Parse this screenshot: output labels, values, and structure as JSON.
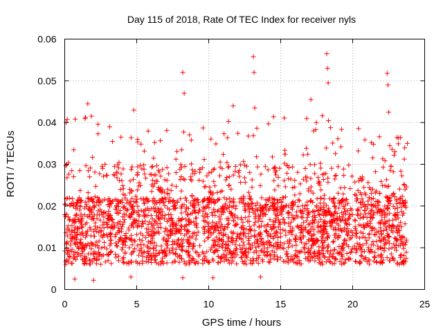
{
  "chart_data": {
    "type": "scatter",
    "title": "Day 115 of 2018, Rate Of TEC Index for receiver nyls",
    "xlabel": "GPS time / hours",
    "ylabel": "ROTI / TECUs",
    "xlim": [
      0,
      25
    ],
    "ylim": [
      0,
      0.06
    ],
    "x_ticks": [
      0,
      5,
      10,
      15,
      20,
      25
    ],
    "x_tick_labels": [
      "0",
      "5",
      "10",
      "15",
      "20",
      "25"
    ],
    "y_ticks": [
      0,
      0.01,
      0.02,
      0.03,
      0.04,
      0.05,
      0.06
    ],
    "y_tick_labels": [
      "0",
      "0.01",
      "0.02",
      "0.03",
      "0.04",
      "0.05",
      "0.06"
    ],
    "grid": true,
    "marker": "+",
    "marker_color": "#ff0000",
    "series": [
      {
        "name": "ROTI",
        "data_gaps_hours": [
          [
            9.4,
            9.55
          ],
          [
            20.0,
            20.1
          ]
        ],
        "typical_range": [
          0.006,
          0.03
        ],
        "notable_points": [
          {
            "x": 0.1,
            "y": 0.04
          },
          {
            "x": 1.6,
            "y": 0.0445
          },
          {
            "x": 4.8,
            "y": 0.043
          },
          {
            "x": 8.2,
            "y": 0.052
          },
          {
            "x": 8.3,
            "y": 0.047
          },
          {
            "x": 11.7,
            "y": 0.044
          },
          {
            "x": 13.1,
            "y": 0.0558
          },
          {
            "x": 13.15,
            "y": 0.052
          },
          {
            "x": 13.2,
            "y": 0.0435
          },
          {
            "x": 17.1,
            "y": 0.0455
          },
          {
            "x": 18.2,
            "y": 0.0565
          },
          {
            "x": 18.25,
            "y": 0.053
          },
          {
            "x": 18.3,
            "y": 0.0495
          },
          {
            "x": 22.4,
            "y": 0.0518
          },
          {
            "x": 22.45,
            "y": 0.049
          },
          {
            "x": 22.5,
            "y": 0.0425
          },
          {
            "x": 23.8,
            "y": 0.035
          },
          {
            "x": 0.7,
            "y": 0.0025
          },
          {
            "x": 2.0,
            "y": 0.0022
          },
          {
            "x": 4.6,
            "y": 0.003
          },
          {
            "x": 8.2,
            "y": 0.0028
          },
          {
            "x": 10.3,
            "y": 0.0028
          },
          {
            "x": 13.6,
            "y": 0.003
          }
        ]
      }
    ]
  }
}
